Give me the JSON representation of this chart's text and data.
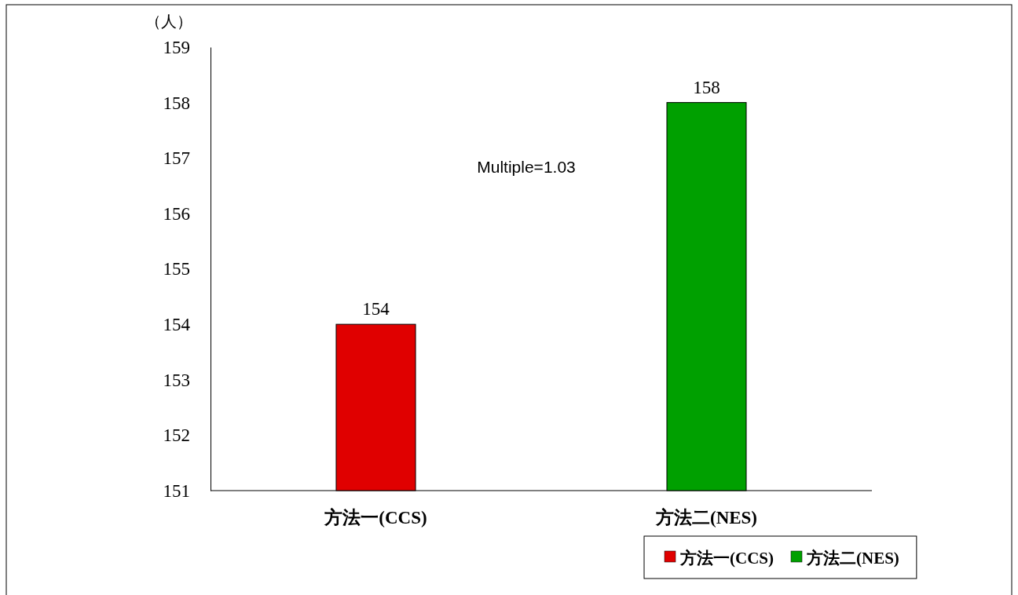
{
  "chart_data": {
    "type": "bar",
    "ylabel": "（人）",
    "categories": [
      "方法一(CCS)",
      "方法二(NES)"
    ],
    "series": [
      {
        "name": "方法一(CCS)",
        "color": "#e00000",
        "values": [
          154,
          null
        ]
      },
      {
        "name": "方法二(NES)",
        "color": "#00a000",
        "values": [
          null,
          158
        ]
      }
    ],
    "ylim": [
      151,
      159
    ],
    "yticks": [
      151,
      152,
      153,
      154,
      155,
      156,
      157,
      158,
      159
    ],
    "grid": false,
    "data_labels": true,
    "legend": "bottom right",
    "annotations": [
      "Multiple=1.03"
    ]
  }
}
